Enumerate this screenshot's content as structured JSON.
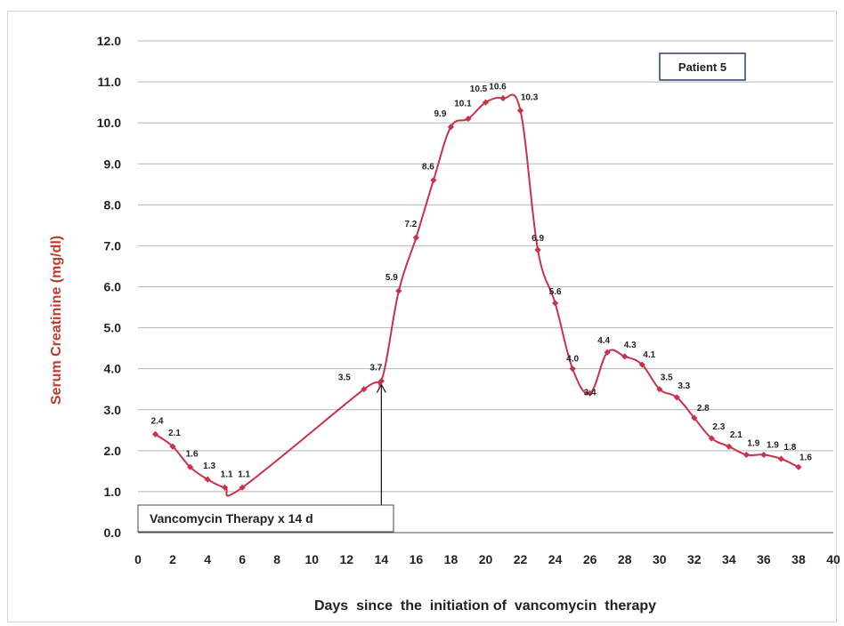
{
  "chart_data": {
    "type": "line",
    "x": [
      1,
      2,
      3,
      4,
      5,
      6,
      13,
      14,
      15,
      16,
      17,
      18,
      19,
      20,
      21,
      22,
      23,
      24,
      25,
      26,
      27,
      28,
      29,
      30,
      31,
      32,
      33,
      34,
      35,
      36,
      37,
      38
    ],
    "y": [
      2.4,
      2.1,
      1.6,
      1.3,
      1.1,
      1.1,
      3.5,
      3.7,
      5.9,
      7.2,
      8.6,
      9.9,
      10.1,
      10.5,
      10.6,
      10.3,
      6.9,
      5.6,
      4.0,
      3.4,
      4.4,
      4.3,
      4.1,
      3.5,
      3.3,
      2.8,
      2.3,
      2.1,
      1.9,
      1.9,
      1.8,
      1.6
    ],
    "data_labels": [
      "2.4",
      "2.1",
      "1.6",
      "1.3",
      "1.1",
      "1.1",
      "3.5",
      "3.7",
      "5.9",
      "7.2",
      "8.6",
      "9.9",
      "10.1",
      "10.5",
      "10.6",
      "10.3",
      "6.9",
      "5.6",
      "4.0",
      "3.4",
      "4.4",
      "4.3",
      "4.1",
      "3.5",
      "3.3",
      "2.8",
      "2.3",
      "2.1",
      "1.9",
      "1.9",
      "1.8",
      "1.6"
    ],
    "xlabel": "Days  since  the  initiation of  vancomycin  therapy",
    "ylabel": "Serum Creatinine (mg/dl)",
    "xlim": [
      0,
      40
    ],
    "ylim": [
      0,
      12
    ],
    "xticks": [
      "0",
      "2",
      "4",
      "6",
      "8",
      "10",
      "12",
      "14",
      "16",
      "18",
      "20",
      "22",
      "24",
      "26",
      "28",
      "30",
      "32",
      "34",
      "36",
      "38",
      "40"
    ],
    "yticks": [
      "0.0",
      "1.0",
      "2.0",
      "3.0",
      "4.0",
      "5.0",
      "6.0",
      "7.0",
      "8.0",
      "9.0",
      "10.0",
      "11.0",
      "12.0"
    ],
    "grid": true,
    "legend_box": "Patient 5",
    "annotation": "Vancomycin Therapy x 14 d",
    "annotation_arrow_x": 14,
    "colors": {
      "series": "#c8324a",
      "axis_label": "#c0392b",
      "grid": "#b5b5b5",
      "box_border": "#2a3f6e"
    }
  }
}
